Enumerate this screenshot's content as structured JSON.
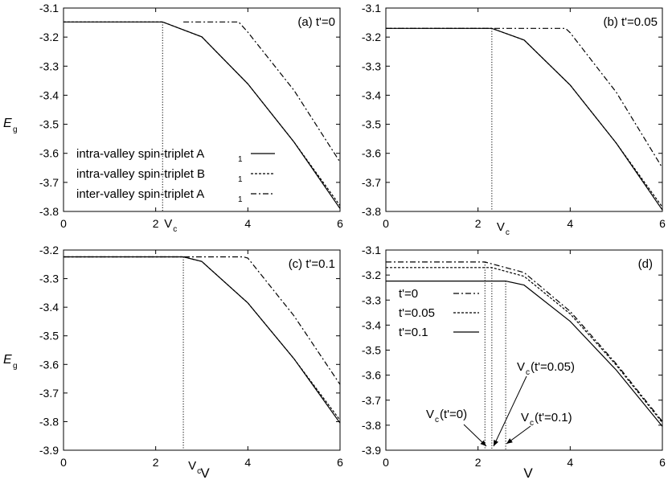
{
  "figure": {
    "y_axis_label_main": "E",
    "y_axis_label_sub": "g"
  },
  "chart_data": [
    {
      "id": "a",
      "type": "line",
      "panel_label": "(a) t'=0",
      "xlim": [
        0,
        6
      ],
      "ylim": [
        -3.8,
        -3.1
      ],
      "x_ticks": [
        "0",
        "2",
        "4",
        "6"
      ],
      "y_ticks": [
        "-3.1",
        "-3.2",
        "-3.3",
        "-3.4",
        "-3.5",
        "-3.6",
        "-3.7",
        "-3.8"
      ],
      "vc_value": 2.15,
      "vc_label": "V",
      "vc_label_sub": "c",
      "legend": [
        {
          "text": "intra-valley spin-triplet A",
          "sub": "1",
          "style": "solid"
        },
        {
          "text": "intra-valley spin-triplet B",
          "sub": "1",
          "style": "dashed"
        },
        {
          "text": "inter-valley spin-triplet A",
          "sub": "1",
          "style": "dashdot"
        }
      ],
      "series": [
        {
          "style": "solid",
          "points": [
            [
              0,
              -3.148
            ],
            [
              2.15,
              -3.148
            ],
            [
              3.0,
              -3.199
            ],
            [
              4.0,
              -3.361
            ],
            [
              5.0,
              -3.561
            ],
            [
              6.0,
              -3.79
            ]
          ]
        },
        {
          "style": "dashed",
          "points": [
            [
              0,
              -3.148
            ],
            [
              2.15,
              -3.148
            ],
            [
              3.0,
              -3.199
            ],
            [
              4.0,
              -3.361
            ],
            [
              5.0,
              -3.561
            ],
            [
              6.0,
              -3.78
            ]
          ]
        },
        {
          "style": "dashdot",
          "points": [
            [
              2.6,
              -3.148
            ],
            [
              3.8,
              -3.148
            ],
            [
              4.0,
              -3.183
            ],
            [
              5.0,
              -3.383
            ],
            [
              6.0,
              -3.63
            ]
          ]
        }
      ]
    },
    {
      "id": "b",
      "type": "line",
      "panel_label": "(b) t'=0.05",
      "xlim": [
        0,
        6
      ],
      "ylim": [
        -3.8,
        -3.1
      ],
      "x_ticks": [
        "0",
        "2",
        "4",
        "6"
      ],
      "y_ticks": [
        "-3.1",
        "-3.2",
        "-3.3",
        "-3.4",
        "-3.5",
        "-3.6",
        "-3.7",
        "-3.8"
      ],
      "vc_value": 2.3,
      "vc_label": "V",
      "vc_label_sub": "c",
      "series": [
        {
          "style": "solid",
          "points": [
            [
              0,
              -3.17
            ],
            [
              2.3,
              -3.17
            ],
            [
              3.0,
              -3.21
            ],
            [
              4.0,
              -3.365
            ],
            [
              5.0,
              -3.565
            ],
            [
              6.0,
              -3.795
            ]
          ]
        },
        {
          "style": "dashed",
          "points": [
            [
              0,
              -3.17
            ],
            [
              2.3,
              -3.17
            ],
            [
              3.0,
              -3.21
            ],
            [
              4.0,
              -3.365
            ],
            [
              5.0,
              -3.565
            ],
            [
              6.0,
              -3.785
            ]
          ]
        },
        {
          "style": "dashdot",
          "points": [
            [
              0,
              -3.17
            ],
            [
              3.9,
              -3.17
            ],
            [
              4.0,
              -3.185
            ],
            [
              5.0,
              -3.39
            ],
            [
              6.0,
              -3.65
            ]
          ]
        }
      ]
    },
    {
      "id": "c",
      "type": "line",
      "panel_label": "(c) t'=0.1",
      "xlim": [
        0,
        6
      ],
      "ylim": [
        -3.9,
        -3.2
      ],
      "x_ticks": [
        "0",
        "2",
        "4",
        "6"
      ],
      "y_ticks": [
        "-3.2",
        "-3.3",
        "-3.4",
        "-3.5",
        "-3.6",
        "-3.7",
        "-3.8",
        "-3.9"
      ],
      "xlabel": "V",
      "vc_value": 2.6,
      "vc_label": "V",
      "vc_label_sub": "c",
      "series": [
        {
          "style": "solid",
          "points": [
            [
              0,
              -3.224
            ],
            [
              2.6,
              -3.224
            ],
            [
              3.0,
              -3.24
            ],
            [
              4.0,
              -3.385
            ],
            [
              5.0,
              -3.58
            ],
            [
              6.0,
              -3.805
            ]
          ]
        },
        {
          "style": "dashed",
          "points": [
            [
              0,
              -3.224
            ],
            [
              2.6,
              -3.224
            ],
            [
              3.0,
              -3.24
            ],
            [
              4.0,
              -3.385
            ],
            [
              5.0,
              -3.58
            ],
            [
              6.0,
              -3.795
            ]
          ]
        },
        {
          "style": "dashdot",
          "points": [
            [
              0,
              -3.224
            ],
            [
              3.9,
              -3.224
            ],
            [
              4.0,
              -3.228
            ],
            [
              5.0,
              -3.43
            ],
            [
              6.0,
              -3.67
            ]
          ]
        }
      ]
    },
    {
      "id": "d",
      "type": "line",
      "panel_label": "(d)",
      "xlim": [
        0,
        6
      ],
      "ylim": [
        -3.9,
        -3.1
      ],
      "x_ticks": [
        "0",
        "2",
        "4",
        "6"
      ],
      "y_ticks": [
        "-3.1",
        "-3.2",
        "-3.3",
        "-3.4",
        "-3.5",
        "-3.6",
        "-3.7",
        "-3.8",
        "-3.9"
      ],
      "xlabel": "V",
      "vc_values": [
        2.15,
        2.3,
        2.6
      ],
      "legend": [
        {
          "text": "t'=0",
          "style": "dashdot"
        },
        {
          "text": "t'=0.05",
          "style": "dashed"
        },
        {
          "text": "t'=0.1",
          "style": "solid"
        }
      ],
      "annotations": [
        {
          "text": "V",
          "sub": "c",
          "suffix": "(t'=0)"
        },
        {
          "text": "V",
          "sub": "c",
          "suffix": "(t'=0.05)"
        },
        {
          "text": "V",
          "sub": "c",
          "suffix": "(t'=0.1)"
        }
      ],
      "series": [
        {
          "name": "t'=0",
          "style": "dashdot",
          "points": [
            [
              0,
              -3.148
            ],
            [
              2.15,
              -3.148
            ],
            [
              3.0,
              -3.19
            ],
            [
              4.0,
              -3.345
            ],
            [
              5.0,
              -3.555
            ],
            [
              6.0,
              -3.785
            ]
          ]
        },
        {
          "name": "t'=0.05",
          "style": "dashed",
          "points": [
            [
              0,
              -3.17
            ],
            [
              2.3,
              -3.17
            ],
            [
              3.0,
              -3.205
            ],
            [
              4.0,
              -3.355
            ],
            [
              5.0,
              -3.56
            ],
            [
              6.0,
              -3.79
            ]
          ]
        },
        {
          "name": "t'=0.1",
          "style": "solid",
          "points": [
            [
              0,
              -3.224
            ],
            [
              2.6,
              -3.224
            ],
            [
              3.0,
              -3.24
            ],
            [
              4.0,
              -3.385
            ],
            [
              5.0,
              -3.58
            ],
            [
              6.0,
              -3.805
            ]
          ]
        }
      ]
    }
  ]
}
